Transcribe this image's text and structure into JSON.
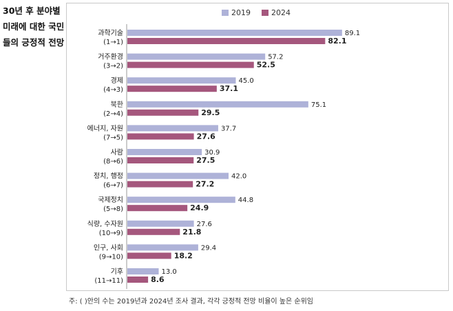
{
  "title": {
    "line1": "30년 후 분야별",
    "line2": "미래에 대한 국민",
    "line3": "들의 긍정적 전망"
  },
  "note": "주: ( )안의 수는 2019년과 2024년 조사 결과, 각각 긍정적 전망 비율이 높은 순위임",
  "colors": {
    "s2019": "#aeb2d8",
    "s2024": "#a5577d"
  },
  "chart_data": {
    "type": "bar",
    "orientation": "horizontal",
    "title": "30년 후 분야별 미래에 대한 국민들의 긍정적 전망",
    "xlabel": "",
    "ylabel": "",
    "xlim": [
      0,
      90
    ],
    "grid": false,
    "legend": "top-center",
    "categories": [
      {
        "name": "과학기술",
        "rank": "(1→1)"
      },
      {
        "name": "거주환경",
        "rank": "(3→2)"
      },
      {
        "name": "경제",
        "rank": "(4→3)"
      },
      {
        "name": "북한",
        "rank": "(2→4)"
      },
      {
        "name": "에너지, 자원",
        "rank": "(7→5)"
      },
      {
        "name": "사람",
        "rank": "(8→6)"
      },
      {
        "name": "정치, 행정",
        "rank": "(6→7)"
      },
      {
        "name": "국제정치",
        "rank": "(5→8)"
      },
      {
        "name": "식량, 수자원",
        "rank": "(10→9)"
      },
      {
        "name": "인구, 사회",
        "rank": "(9→10)"
      },
      {
        "name": "기후",
        "rank": "(11→11)"
      }
    ],
    "series": [
      {
        "name": "2019",
        "values": [
          "89.1",
          "57.2",
          "45.0",
          "75.1",
          "37.7",
          "30.9",
          "42.0",
          "44.8",
          "27.6",
          "29.4",
          "13.0"
        ]
      },
      {
        "name": "2024",
        "values": [
          "82.1",
          "52.5",
          "37.1",
          "29.5",
          "27.6",
          "27.5",
          "27.2",
          "24.9",
          "21.8",
          "18.2",
          "8.6"
        ]
      }
    ]
  }
}
